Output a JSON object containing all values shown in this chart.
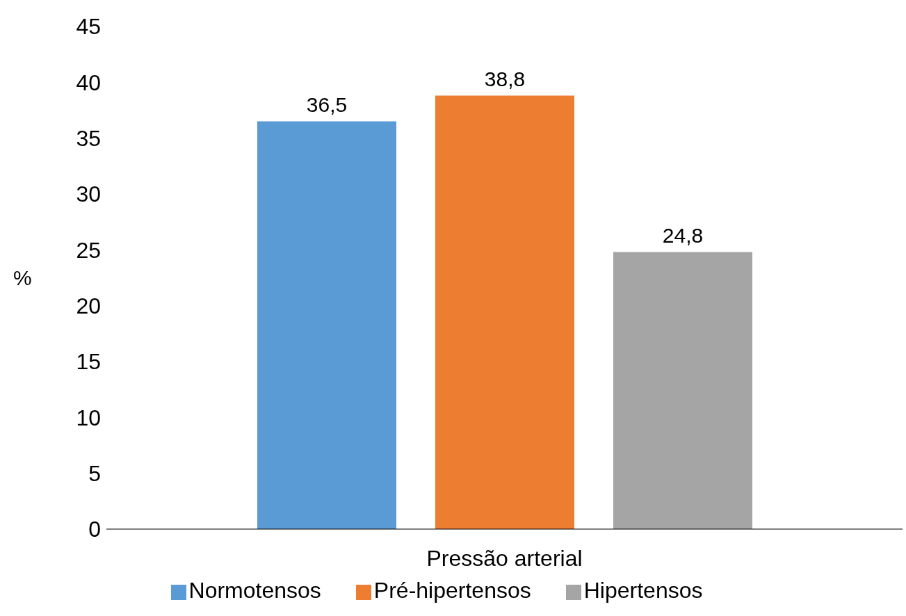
{
  "chart_data": {
    "type": "bar",
    "categories": [
      "Pressão arterial"
    ],
    "ylabel": "%",
    "ylim": [
      0,
      45
    ],
    "yticks": [
      0,
      5,
      10,
      15,
      20,
      25,
      30,
      35,
      40,
      45
    ],
    "grid": false,
    "legend": "bottom",
    "series": [
      {
        "name": "Normotensos",
        "color": "#5b9bd5",
        "values": [
          36.5
        ],
        "value_labels": [
          "36,5"
        ]
      },
      {
        "name": "Pré-hipertensos",
        "color": "#ed7d31",
        "values": [
          38.8
        ],
        "value_labels": [
          "38,8"
        ]
      },
      {
        "name": "Hipertensos",
        "color": "#a5a5a5",
        "values": [
          24.8
        ],
        "value_labels": [
          "24,8"
        ]
      }
    ]
  }
}
